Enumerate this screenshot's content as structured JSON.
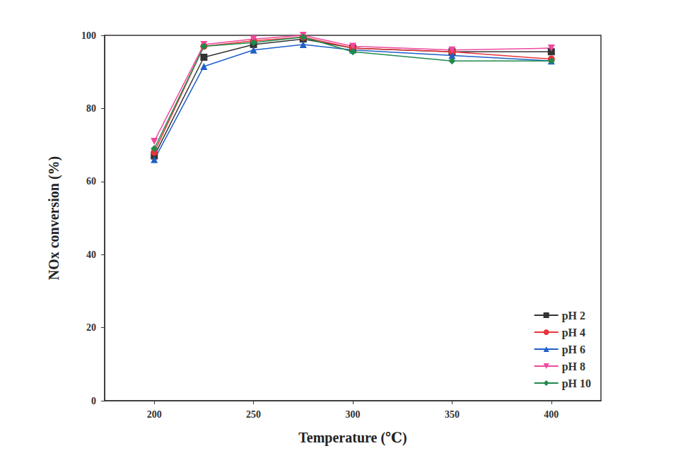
{
  "chart_data": {
    "type": "line",
    "x_label": "Temperature (℃)",
    "y_label": "NOx conversion (%)",
    "x": [
      200,
      225,
      250,
      275,
      300,
      350,
      400
    ],
    "xlim": [
      175,
      425
    ],
    "xticks": [
      200,
      250,
      300,
      350,
      400
    ],
    "ylim": [
      0,
      100
    ],
    "yticks": [
      0,
      20,
      40,
      60,
      80,
      100
    ],
    "grid": false,
    "legend": "lower right",
    "series": [
      {
        "name": "pH 2",
        "color": "#333333",
        "marker": "square",
        "values": [
          67,
          94,
          97.5,
          99,
          96.5,
          95.5,
          95.5
        ]
      },
      {
        "name": "pH 4",
        "color": "#e8343a",
        "marker": "circle",
        "values": [
          68,
          97,
          98.5,
          99.5,
          96.5,
          95.5,
          93.5
        ]
      },
      {
        "name": "pH 6",
        "color": "#1f5fc8",
        "marker": "triangle",
        "values": [
          66,
          91.5,
          96,
          97.5,
          96,
          94.5,
          93
        ]
      },
      {
        "name": "pH 8",
        "color": "#f0489e",
        "marker": "triangle-down",
        "values": [
          71,
          97.5,
          99,
          100,
          97,
          96,
          96.5
        ]
      },
      {
        "name": "pH 10",
        "color": "#1f8a4c",
        "marker": "diamond",
        "values": [
          69,
          97,
          98,
          99.5,
          95.5,
          93,
          93
        ]
      }
    ]
  }
}
